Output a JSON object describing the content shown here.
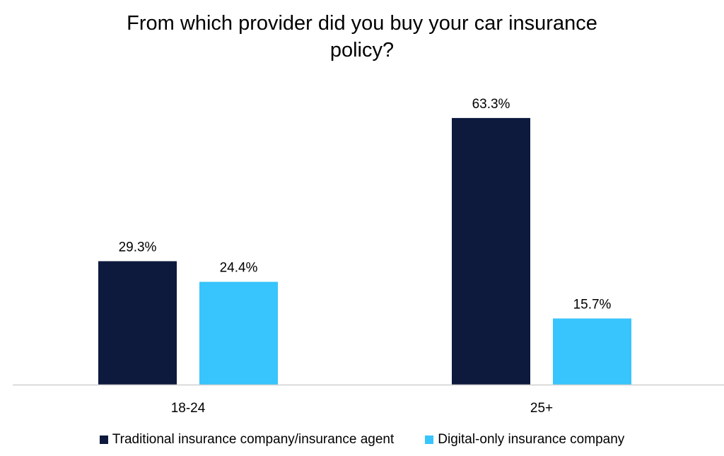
{
  "chart_data": {
    "type": "bar",
    "title_lines": [
      "From which provider did you buy your car insurance",
      "policy?"
    ],
    "categories": [
      "18-24",
      "25+"
    ],
    "series": [
      {
        "name": "Traditional insurance company/insurance agent",
        "values": [
          29.3,
          63.3
        ],
        "labels": [
          "29.3%",
          "63.3%"
        ],
        "color": "#0d1a3e"
      },
      {
        "name": "Digital-only insurance company",
        "values": [
          24.4,
          15.7
        ],
        "labels": [
          "24.4%",
          "15.7%"
        ],
        "color": "#38c4fc"
      }
    ],
    "ylim": [
      0,
      70
    ],
    "grid": false,
    "legend_position": "bottom",
    "axis_color": "#d0d0d0"
  }
}
